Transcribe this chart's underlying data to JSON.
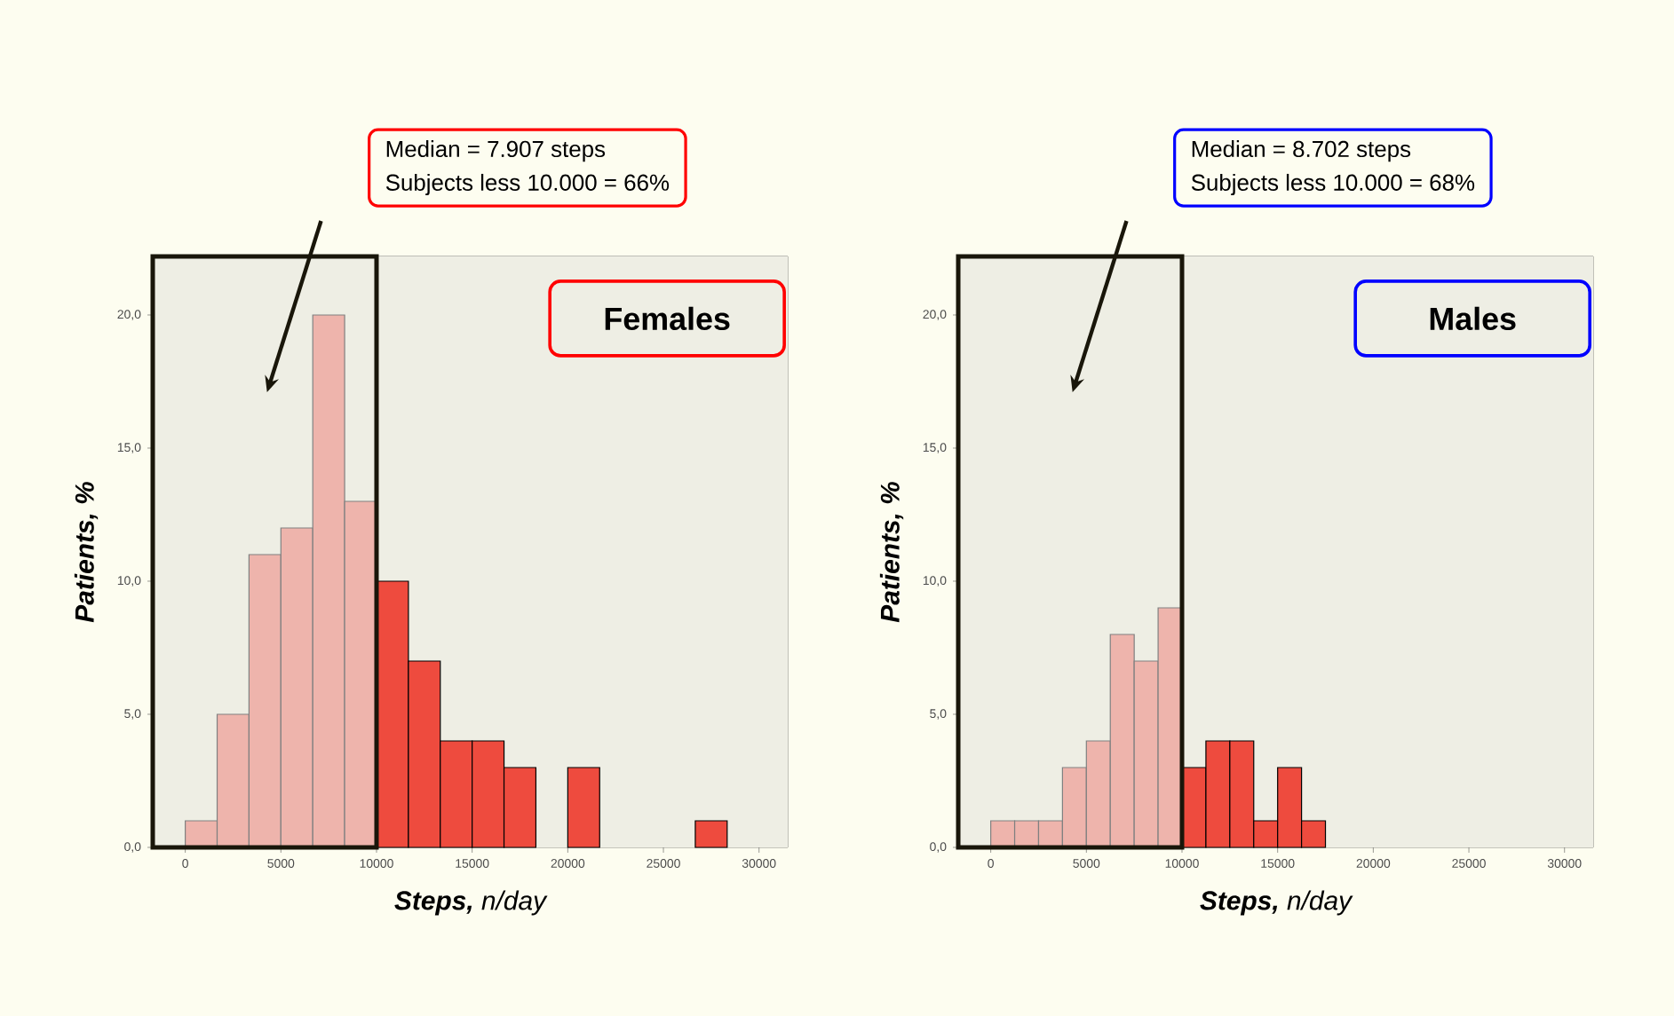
{
  "chart_data": [
    {
      "type": "histogram",
      "title": "Females",
      "annotations": [
        "Median = 7.907 steps",
        "Subjects less 10.000 = 66%"
      ],
      "xlabel": "**Steps,** *n/day*",
      "ylabel": "Patients, %",
      "bins": [
        0,
        1667,
        3333,
        5000,
        6667,
        8333,
        10000,
        11667,
        13333,
        15000,
        16667,
        18333,
        20000,
        21667,
        23333,
        25000,
        26667,
        28333
      ],
      "values": [
        1,
        5,
        11,
        12,
        20,
        13,
        10,
        7,
        4,
        4,
        3,
        0,
        3,
        0,
        0,
        0,
        1
      ],
      "colors": [
        "#eeb4ac",
        "#eeb4ac",
        "#eeb4ac",
        "#eeb4ac",
        "#eeb4ac",
        "#eeb4ac",
        "#ee4b3e",
        "#ee4b3e",
        "#ee4b3e",
        "#ee4b3e",
        "#ee4b3e",
        "#ee4b3e",
        "#ee4b3e",
        "#ee4b3e",
        "#ee4b3e",
        "#ee4b3e",
        "#ee4b3e"
      ],
      "xlim": [
        -1700,
        31500
      ],
      "ylim": [
        0,
        22.2
      ],
      "xticks": [
        0,
        5000,
        10000,
        15000,
        20000,
        25000,
        30000
      ],
      "yticks": [
        {
          "value": 0,
          "label": "0,0"
        },
        {
          "value": 5,
          "label": "5,0"
        },
        {
          "value": 10,
          "label": "10,0"
        },
        {
          "value": 15,
          "label": "15,0"
        },
        {
          "value": 20,
          "label": "20,0"
        }
      ]
    },
    {
      "type": "histogram",
      "title": "Males",
      "annotations": [
        "Median = 8.702 steps",
        "Subjects less 10.000 = 68%"
      ],
      "xlabel": "**Steps,** *n/day*",
      "ylabel": "Patients, %",
      "bins": [
        0,
        1250,
        2500,
        3750,
        5000,
        6250,
        7500,
        8750,
        10000,
        11250,
        12500,
        13750,
        15000,
        16250,
        17500
      ],
      "values": [
        1,
        1,
        1,
        3,
        4,
        8,
        7,
        9,
        3,
        4,
        4,
        1,
        3,
        1
      ],
      "colors": [
        "#eeb4ac",
        "#eeb4ac",
        "#eeb4ac",
        "#eeb4ac",
        "#eeb4ac",
        "#eeb4ac",
        "#eeb4ac",
        "#eeb4ac",
        "#ee4b3e",
        "#ee4b3e",
        "#ee4b3e",
        "#ee4b3e",
        "#ee4b3e",
        "#ee4b3e"
      ],
      "xlim": [
        -1700,
        31500
      ],
      "ylim": [
        0,
        22.2
      ],
      "xticks": [
        0,
        5000,
        10000,
        15000,
        20000,
        25000,
        30000
      ],
      "yticks": [
        {
          "value": 0,
          "label": "0,0"
        },
        {
          "value": 5,
          "label": "5,0"
        },
        {
          "value": 10,
          "label": "10,0"
        },
        {
          "value": 15,
          "label": "15,0"
        },
        {
          "value": 20,
          "label": "20,0"
        }
      ]
    }
  ]
}
